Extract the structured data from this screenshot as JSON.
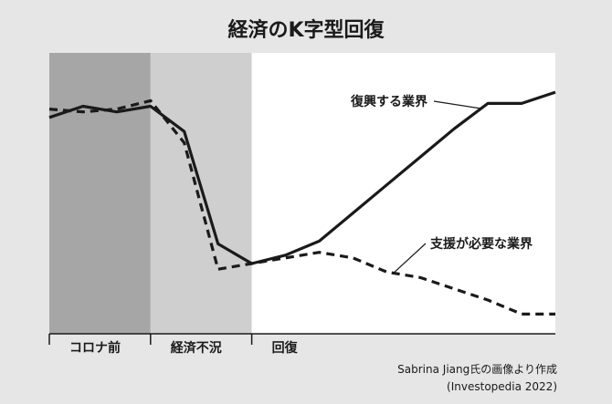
{
  "title": "経済のK字型回復",
  "phases": [
    {
      "label": "コロナ前",
      "x_start": 0,
      "x_end": 3,
      "fill": "#a6a6a6"
    },
    {
      "label": "経済不況",
      "x_start": 3,
      "x_end": 6,
      "fill": "#cfcfcf"
    },
    {
      "label": "回復",
      "x_start": 6,
      "x_end": 15,
      "fill": "#ffffff"
    }
  ],
  "source": {
    "line1": "Sabrina Jiang氏の画像より作成",
    "line2": "(Investopedia 2022)"
  },
  "chart_data": {
    "type": "line",
    "title": "経済のK字型回復",
    "xlabel": "",
    "ylabel": "",
    "xlim": [
      0,
      15
    ],
    "ylim": [
      0,
      10
    ],
    "grid": false,
    "series": [
      {
        "name": "復興する業界",
        "style": "solid",
        "color": "#1a1a1a",
        "x": [
          0,
          1,
          2,
          3,
          4,
          5,
          6,
          7,
          8,
          9,
          10,
          11,
          12,
          13,
          14,
          15
        ],
        "values": [
          7.7,
          8.1,
          7.9,
          8.1,
          7.2,
          3.2,
          2.5,
          2.8,
          3.3,
          4.3,
          5.3,
          6.3,
          7.3,
          8.2,
          8.2,
          8.6
        ]
      },
      {
        "name": "支援が必要な業界",
        "style": "dashed",
        "color": "#1a1a1a",
        "x": [
          0,
          1,
          2,
          3,
          4,
          5,
          6,
          7,
          8,
          9,
          10,
          11,
          12,
          13,
          14,
          15
        ],
        "values": [
          8.0,
          7.9,
          8.0,
          8.3,
          6.8,
          2.3,
          2.5,
          2.7,
          2.9,
          2.7,
          2.2,
          2.0,
          1.6,
          1.2,
          0.7,
          0.7
        ]
      }
    ],
    "annotations": [
      {
        "text": "復興する業界",
        "series": 0,
        "x": 12.8
      },
      {
        "text": "支援が必要な業界",
        "series": 1,
        "x": 10.2
      }
    ]
  }
}
